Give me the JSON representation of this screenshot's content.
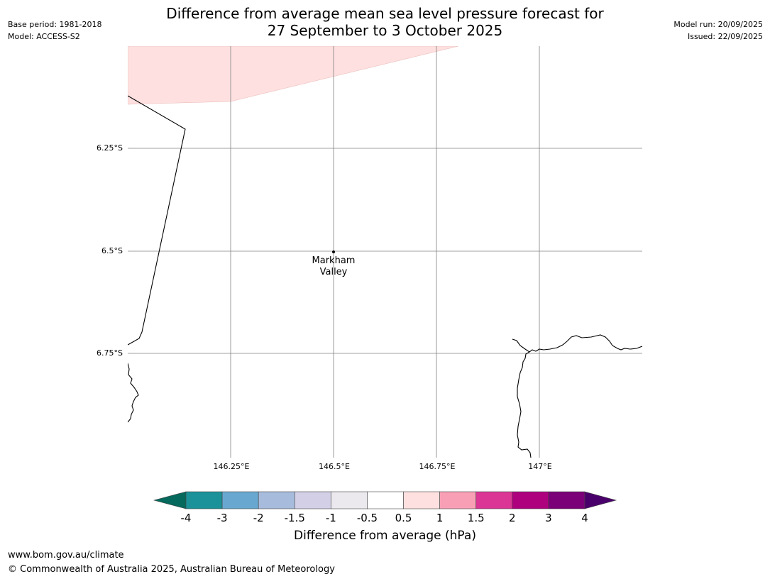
{
  "header": {
    "base_period": "Base period: 1981-2018",
    "model": "Model: ACCESS-S2",
    "title_line1": "Difference from average mean sea level pressure forecast for",
    "title_line2": "27 September to 3 October 2025",
    "model_run": "Model run: 20/09/2025",
    "issued": "Issued: 22/09/2025"
  },
  "map": {
    "latitude_labels": [
      "6.25°S",
      "6.5°S",
      "6.75°S"
    ],
    "longitude_labels": [
      "146.25°E",
      "146.5°E",
      "146.75°E",
      "147°E"
    ],
    "place": {
      "name_line1": "Markham",
      "name_line2": "Valley"
    },
    "anomaly_fill_color": "#fde0df",
    "gridline_color": "#808080",
    "coastline_color": "#000000"
  },
  "colorbar": {
    "ticks": [
      "-4",
      "-3",
      "-2",
      "-1.5",
      "-1",
      "-0.5",
      "0.5",
      "1",
      "1.5",
      "2",
      "3",
      "4"
    ],
    "colors": [
      "#05695d",
      "#1b9299",
      "#68a8d0",
      "#a7bbdc",
      "#d2cfe6",
      "#ebe9ed",
      "#ffffff",
      "#fde0df",
      "#f99fb5",
      "#db3595",
      "#ae017e",
      "#7a0177",
      "#4a006a"
    ],
    "label": "Difference from average (hPa)"
  },
  "footer": {
    "url": "www.bom.gov.au/climate",
    "copyright": "© Commonwealth of Australia 2025, Australian Bureau of Meteorology"
  }
}
